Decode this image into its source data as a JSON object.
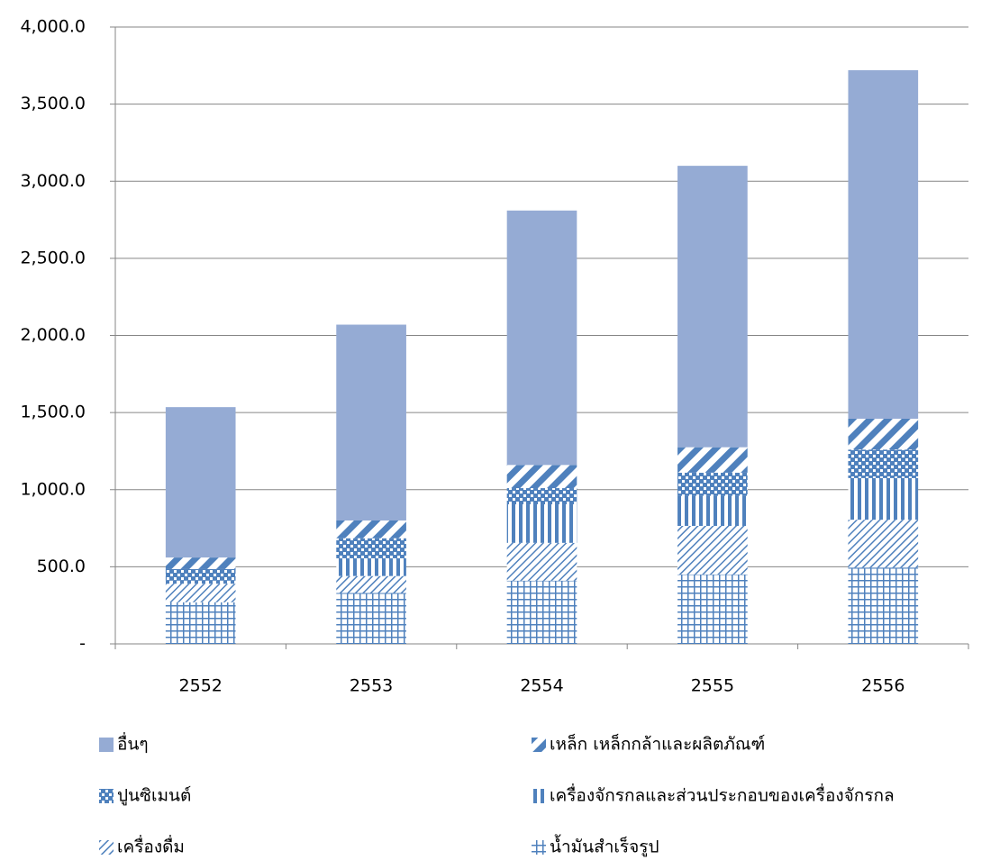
{
  "chart_data": {
    "type": "stacked-bar",
    "categories": [
      "2552",
      "2553",
      "2554",
      "2555",
      "2556"
    ],
    "series": [
      {
        "name": "น้ำมันสำเร็จรูป",
        "color": "#4f81bd",
        "pattern": "grid",
        "values": [
          270,
          330,
          410,
          450,
          495
        ]
      },
      {
        "name": "เครื่องดื่ม",
        "color": "#4f81bd",
        "pattern": "diagonal",
        "values": [
          120,
          110,
          245,
          315,
          310
        ]
      },
      {
        "name": "เครื่องจักรกลและส่วนประกอบของเครื่องจักรกล",
        "color": "#4f81bd",
        "pattern": "vertical",
        "values": [
          20,
          115,
          250,
          195,
          270
        ]
      },
      {
        "name": "ปูนซิเมนต์",
        "color": "#4f81bd",
        "pattern": "checker",
        "values": [
          75,
          130,
          105,
          150,
          185
        ]
      },
      {
        "name": "เหล็ก เหล็กกล้าและผลิตภัณฑ์",
        "color": "#4f81bd",
        "pattern": "wide-diagonal",
        "values": [
          75,
          115,
          150,
          165,
          200
        ]
      },
      {
        "name": "อื่นๆ",
        "color": "#95abd4",
        "pattern": "solid",
        "values": [
          975,
          1270,
          1650,
          1825,
          2260
        ]
      }
    ],
    "ylim": [
      0,
      4000
    ],
    "yticks": [
      {
        "value": 0,
        "label": "-"
      },
      {
        "value": 500,
        "label": "500.0"
      },
      {
        "value": 1000,
        "label": "1,000.0"
      },
      {
        "value": 1500,
        "label": "1,500.0"
      },
      {
        "value": 2000,
        "label": "2,000.0"
      },
      {
        "value": 2500,
        "label": "2,500.0"
      },
      {
        "value": 3000,
        "label": "3,000.0"
      },
      {
        "value": 3500,
        "label": "3,500.0"
      },
      {
        "value": 4000,
        "label": "4,000.0"
      }
    ],
    "grid": true
  }
}
